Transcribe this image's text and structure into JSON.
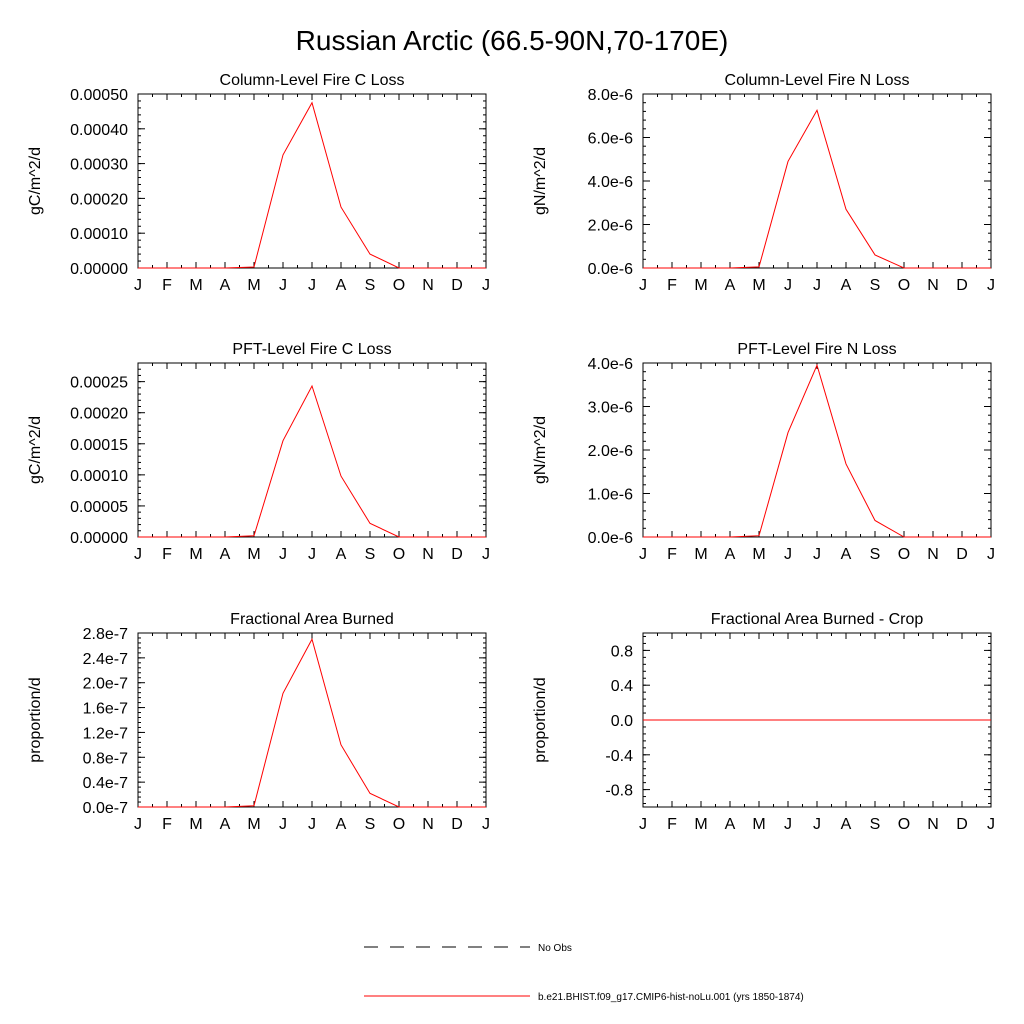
{
  "figure": {
    "title": "Russian Arctic (66.5-90N,70-170E)"
  },
  "legend": {
    "items": [
      {
        "label": "No Obs",
        "style": "dashed",
        "color": "#000000"
      },
      {
        "label": "b.e21.BHIST.f09_g17.CMIP6-hist-noLu.001 (yrs 1850-1874)",
        "style": "solid",
        "color": "#ff0000"
      }
    ]
  },
  "chart_data": [
    {
      "type": "line",
      "title": "Column-Level Fire C Loss",
      "ylabel": "gC/m^2/d",
      "x": [
        "J",
        "F",
        "M",
        "A",
        "M",
        "J",
        "J",
        "A",
        "S",
        "O",
        "N",
        "D",
        "J"
      ],
      "ylim": [
        0,
        0.0005
      ],
      "yticks": [
        0,
        0.0001,
        0.0002,
        0.0003,
        0.0004,
        0.0005
      ],
      "ytick_labels": [
        "0.00000",
        "0.00010",
        "0.00020",
        "0.00030",
        "0.00040",
        "0.00050"
      ],
      "series": [
        {
          "color": "#ff0000",
          "values": [
            0,
            0,
            0,
            0,
            3e-06,
            0.000325,
            0.000475,
            0.000175,
            4e-05,
            0,
            0,
            0,
            0
          ]
        }
      ]
    },
    {
      "type": "line",
      "title": "Column-Level Fire N Loss",
      "ylabel": "gN/m^2/d",
      "x": [
        "J",
        "F",
        "M",
        "A",
        "M",
        "J",
        "J",
        "A",
        "S",
        "O",
        "N",
        "D",
        "J"
      ],
      "ylim": [
        0,
        8e-06
      ],
      "yticks": [
        0,
        2e-06,
        4e-06,
        6e-06,
        8e-06
      ],
      "ytick_labels": [
        "0.0e-6",
        "2.0e-6",
        "4.0e-6",
        "6.0e-6",
        "8.0e-6"
      ],
      "series": [
        {
          "color": "#ff0000",
          "values": [
            0,
            0,
            0,
            0,
            5e-08,
            4.9e-06,
            7.25e-06,
            2.7e-06,
            6e-07,
            0,
            0,
            0,
            0
          ]
        }
      ]
    },
    {
      "type": "line",
      "title": "PFT-Level Fire C Loss",
      "ylabel": "gC/m^2/d",
      "x": [
        "J",
        "F",
        "M",
        "A",
        "M",
        "J",
        "J",
        "A",
        "S",
        "O",
        "N",
        "D",
        "J"
      ],
      "ylim": [
        0,
        0.00028
      ],
      "yticks": [
        0,
        5e-05,
        0.0001,
        0.00015,
        0.0002,
        0.00025
      ],
      "ytick_labels": [
        "0.00000",
        "0.00005",
        "0.00010",
        "0.00015",
        "0.00020",
        "0.00025"
      ],
      "series": [
        {
          "color": "#ff0000",
          "values": [
            0,
            0,
            0,
            0,
            2e-06,
            0.000155,
            0.000243,
            9.8e-05,
            2.2e-05,
            0,
            0,
            0,
            0
          ]
        }
      ]
    },
    {
      "type": "line",
      "title": "PFT-Level Fire N Loss",
      "ylabel": "gN/m^2/d",
      "x": [
        "J",
        "F",
        "M",
        "A",
        "M",
        "J",
        "J",
        "A",
        "S",
        "O",
        "N",
        "D",
        "J"
      ],
      "ylim": [
        0,
        4e-06
      ],
      "yticks": [
        0,
        1e-06,
        2e-06,
        3e-06,
        4e-06
      ],
      "ytick_labels": [
        "0.0e-6",
        "1.0e-6",
        "2.0e-6",
        "3.0e-6",
        "4.0e-6"
      ],
      "series": [
        {
          "color": "#ff0000",
          "values": [
            0,
            0,
            0,
            0,
            3e-08,
            2.4e-06,
            3.95e-06,
            1.68e-06,
            3.8e-07,
            0,
            0,
            0,
            0
          ]
        }
      ]
    },
    {
      "type": "line",
      "title": "Fractional Area Burned",
      "ylabel": "proportion/d",
      "x": [
        "J",
        "F",
        "M",
        "A",
        "M",
        "J",
        "J",
        "A",
        "S",
        "O",
        "N",
        "D",
        "J"
      ],
      "ylim": [
        0,
        2.8e-07
      ],
      "yticks": [
        0,
        4e-08,
        8e-08,
        1.2e-07,
        1.6e-07,
        2e-07,
        2.4e-07,
        2.8e-07
      ],
      "ytick_labels": [
        "0.0e-7",
        "0.4e-7",
        "0.8e-7",
        "1.2e-7",
        "1.6e-7",
        "2.0e-7",
        "2.4e-7",
        "2.8e-7"
      ],
      "series": [
        {
          "color": "#ff0000",
          "values": [
            0,
            0,
            0,
            0,
            2e-09,
            1.83e-07,
            2.7e-07,
            1e-07,
            2.2e-08,
            0,
            0,
            0,
            0
          ]
        }
      ]
    },
    {
      "type": "line",
      "title": "Fractional Area Burned - Crop",
      "ylabel": "proportion/d",
      "x": [
        "J",
        "F",
        "M",
        "A",
        "M",
        "J",
        "J",
        "A",
        "S",
        "O",
        "N",
        "D",
        "J"
      ],
      "ylim": [
        -1.0,
        1.0
      ],
      "yticks": [
        -0.8,
        -0.4,
        0.0,
        0.4,
        0.8
      ],
      "ytick_labels": [
        "-0.8",
        "-0.4",
        "0.0",
        "0.4",
        "0.8"
      ],
      "series": [
        {
          "color": "#ff0000",
          "values": [
            0,
            0,
            0,
            0,
            0,
            0,
            0,
            0,
            0,
            0,
            0,
            0,
            0
          ]
        }
      ]
    }
  ]
}
